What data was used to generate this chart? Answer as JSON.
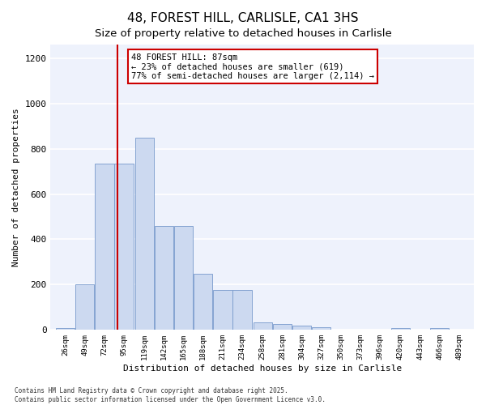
{
  "title1": "48, FOREST HILL, CARLISLE, CA1 3HS",
  "title2": "Size of property relative to detached houses in Carlisle",
  "xlabel": "Distribution of detached houses by size in Carlisle",
  "ylabel": "Number of detached properties",
  "footnote1": "Contains HM Land Registry data © Crown copyright and database right 2025.",
  "footnote2": "Contains public sector information licensed under the Open Government Licence v3.0.",
  "annotation_title": "48 FOREST HILL: 87sqm",
  "annotation_line1": "← 23% of detached houses are smaller (619)",
  "annotation_line2": "77% of semi-detached houses are larger (2,114) →",
  "bar_color": "#ccd9f0",
  "bar_edge_color": "#7799cc",
  "vline_color": "#cc0000",
  "annotation_box_color": "#cc0000",
  "bins": [
    26,
    49,
    72,
    95,
    119,
    142,
    165,
    188,
    211,
    234,
    258,
    281,
    304,
    327,
    350,
    373,
    396,
    420,
    443,
    466,
    489
  ],
  "values": [
    10,
    200,
    735,
    735,
    850,
    460,
    460,
    248,
    175,
    175,
    35,
    25,
    18,
    12,
    0,
    0,
    0,
    8,
    0,
    8,
    0
  ],
  "vline_x": 87,
  "ylim": [
    0,
    1260
  ],
  "yticks": [
    0,
    200,
    400,
    600,
    800,
    1000,
    1200
  ],
  "bg_color": "#eef2fc",
  "grid_color": "#ffffff",
  "title_fontsize": 11,
  "subtitle_fontsize": 9.5,
  "axis_label_fontsize": 8,
  "tick_fontsize": 6.5,
  "annotation_fontsize": 7.5,
  "footnote_fontsize": 5.5
}
